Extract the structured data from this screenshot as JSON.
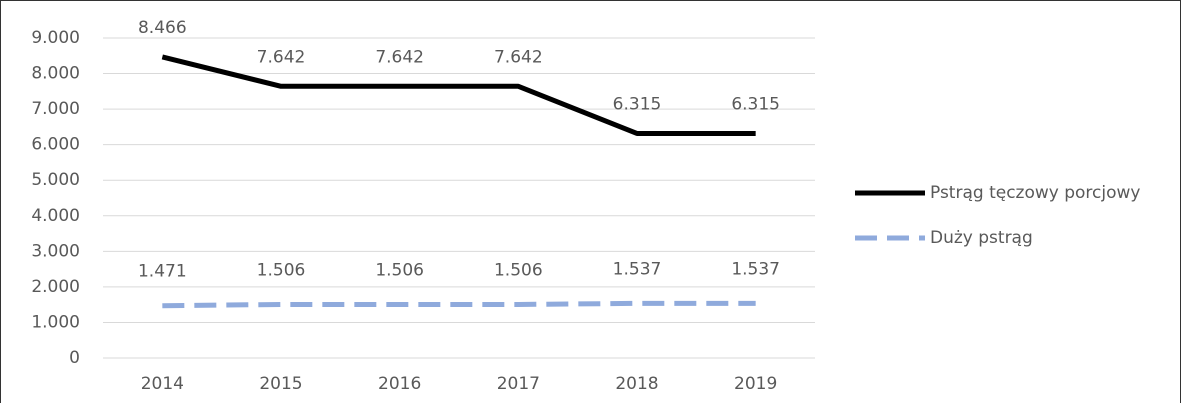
{
  "chart_data": {
    "type": "line",
    "categories": [
      "2014",
      "2015",
      "2016",
      "2017",
      "2018",
      "2019"
    ],
    "series": [
      {
        "name": "Pstrąg tęczowy porcjowy",
        "color": "#000000",
        "dash": false,
        "values": [
          8466,
          7642,
          7642,
          7642,
          6315,
          6315
        ],
        "value_labels": [
          "8.466",
          "7.642",
          "7.642",
          "7.642",
          "6.315",
          "6.315"
        ]
      },
      {
        "name": "Duży pstrąg",
        "color": "#8faadc",
        "dash": true,
        "values": [
          1471,
          1506,
          1506,
          1506,
          1537,
          1537
        ],
        "value_labels": [
          "1.471",
          "1.506",
          "1.506",
          "1.506",
          "1.537",
          "1.537"
        ]
      }
    ],
    "ylim": [
      0,
      9000
    ],
    "yticks": [
      0,
      {
        "value": 1000,
        "label": "1.000"
      },
      {
        "value": 2000,
        "label": "2.000"
      },
      {
        "value": 3000,
        "label": "3.000"
      },
      {
        "value": 4000,
        "label": "4.000"
      },
      {
        "value": 5000,
        "label": "5.000"
      },
      {
        "value": 6000,
        "label": "6.000"
      },
      {
        "value": 7000,
        "label": "7.000"
      },
      {
        "value": 8000,
        "label": "8.000"
      },
      {
        "value": 9000,
        "label": "9.000"
      }
    ],
    "grid": true,
    "legend": "right"
  }
}
